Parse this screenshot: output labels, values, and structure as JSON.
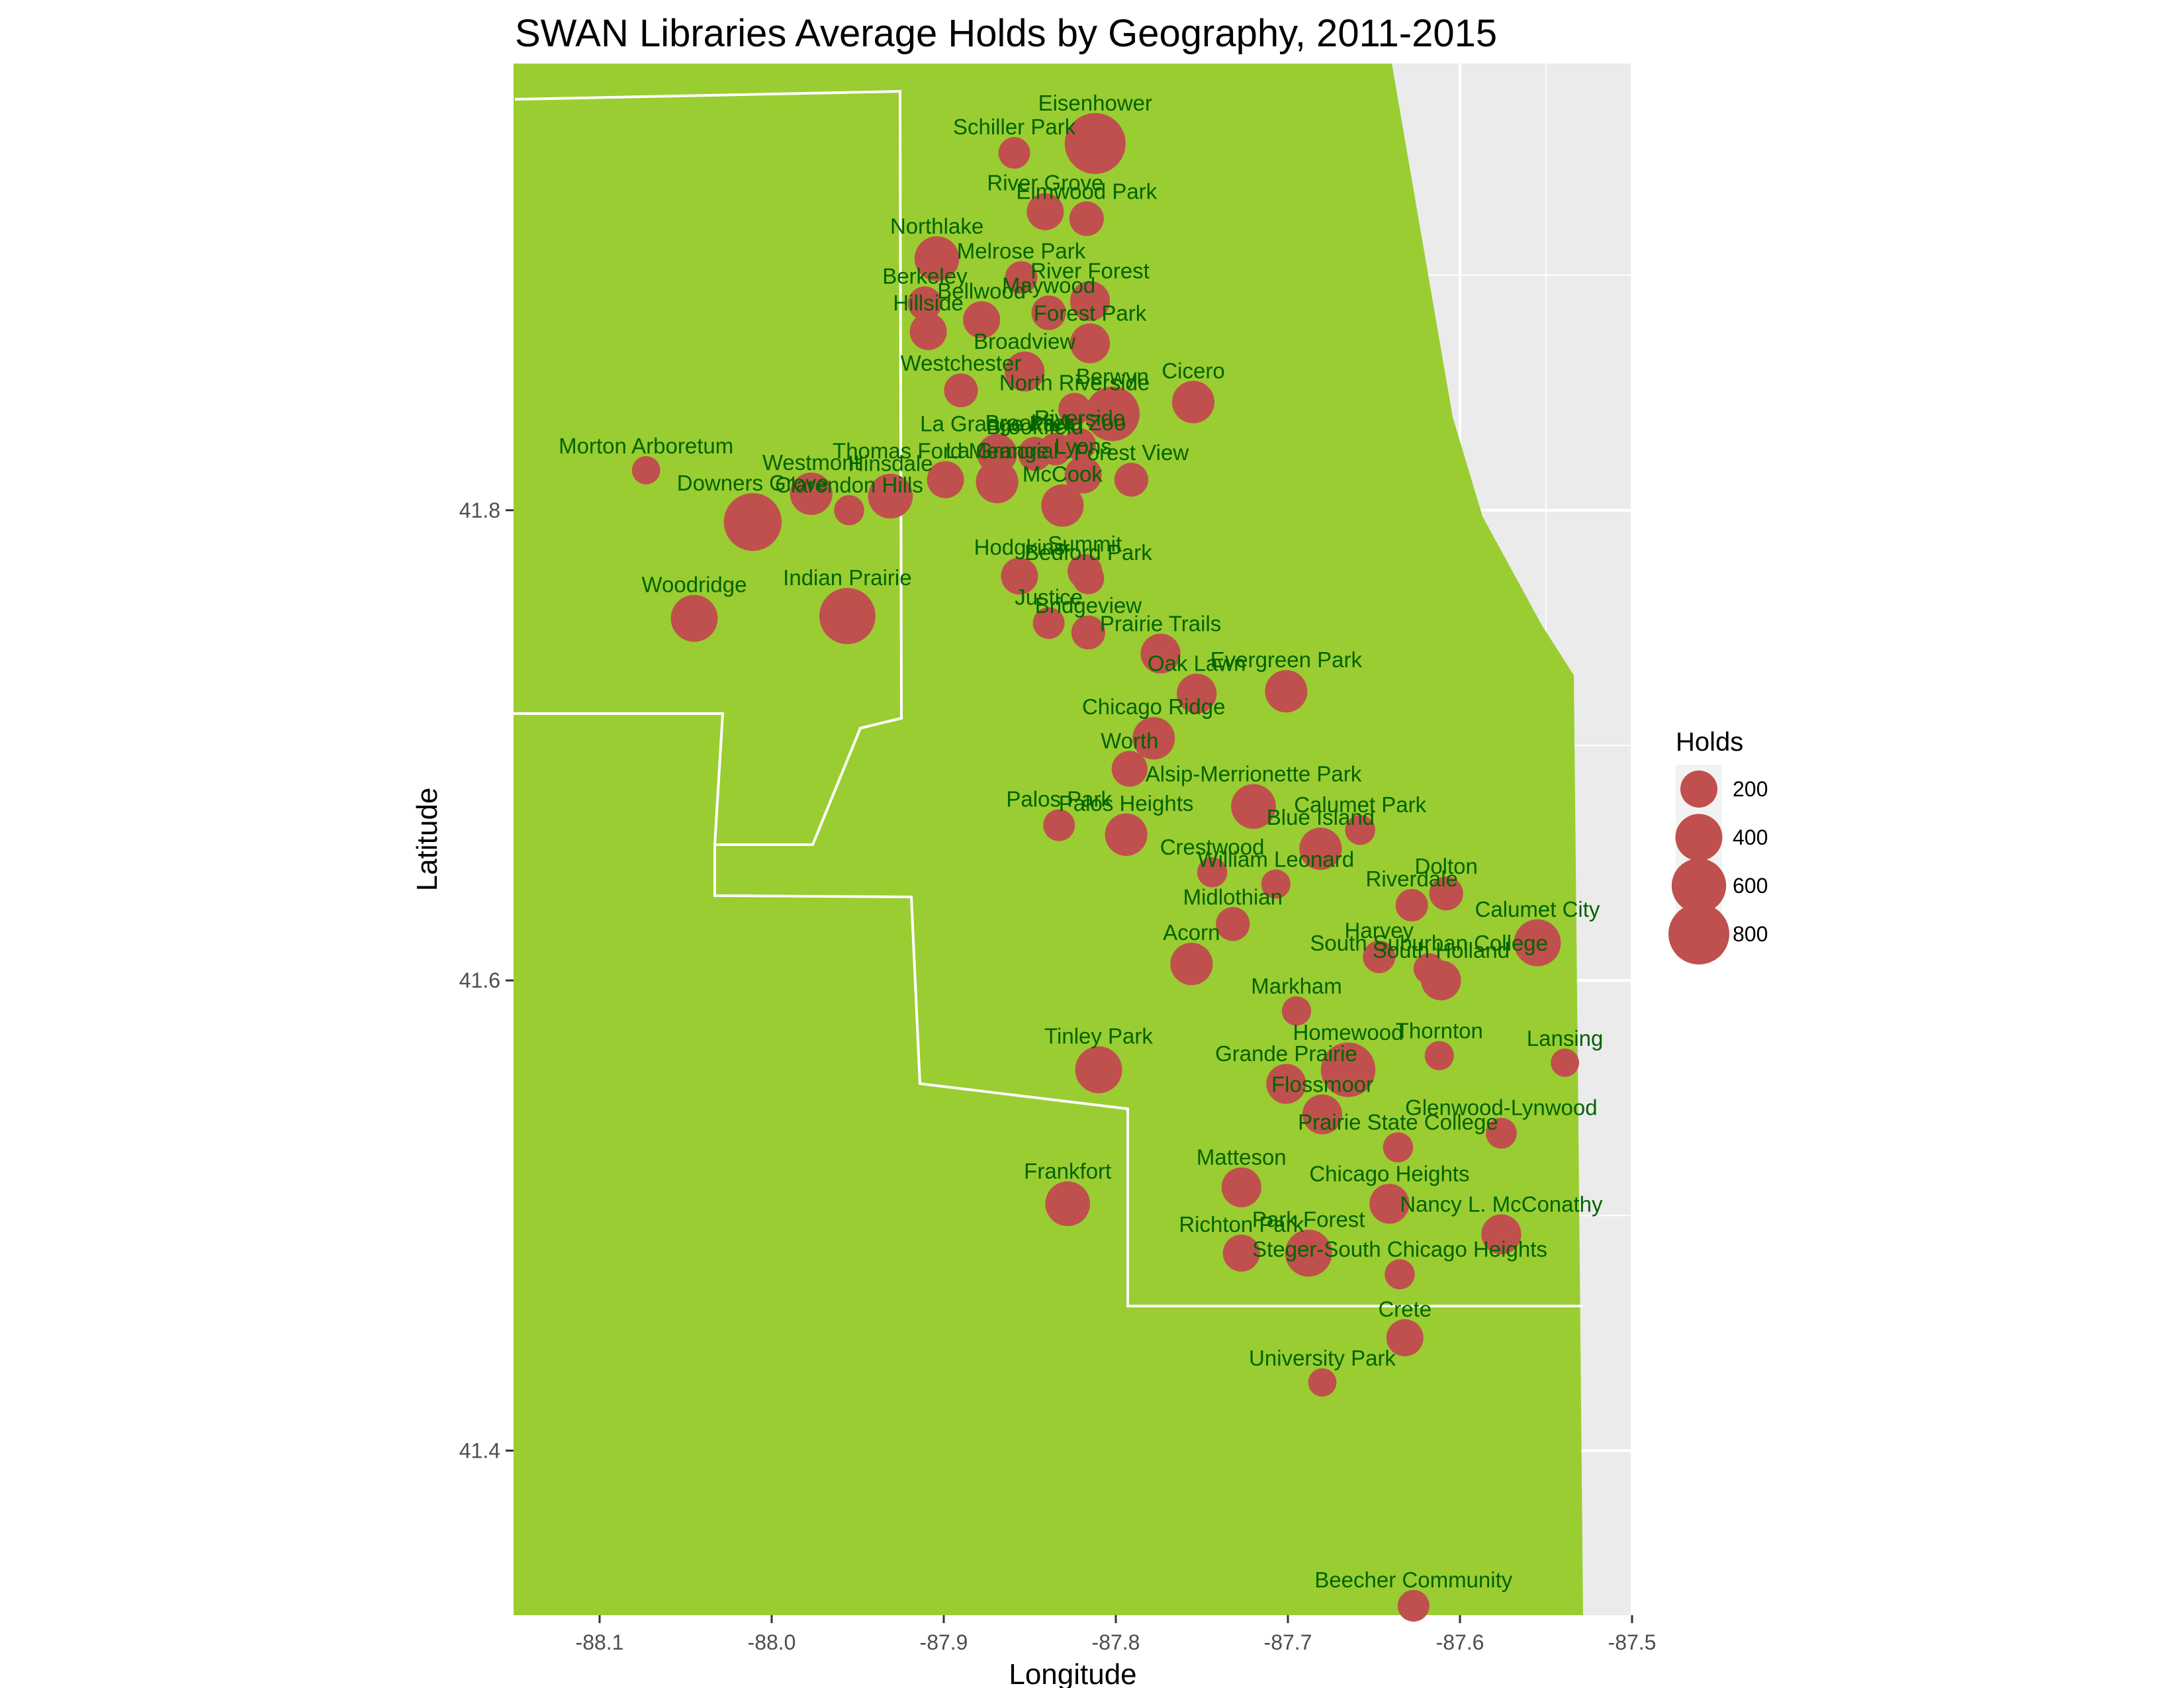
{
  "chart_data": {
    "type": "scatter",
    "title": "SWAN Libraries Average Holds by Geography, 2011-2015",
    "xlabel": "Longitude",
    "ylabel": "Latitude",
    "xlim": [
      -88.15,
      -87.5
    ],
    "ylim": [
      41.33,
      41.99
    ],
    "x_ticks": [
      -88.1,
      -88.0,
      -87.9,
      -87.8,
      -87.7,
      -87.6,
      -87.5
    ],
    "x_tick_labels": [
      "-88.1",
      "-88.0",
      "-87.9",
      "-87.8",
      "-87.7",
      "-87.6",
      "-87.5"
    ],
    "y_ticks": [
      41.4,
      41.6,
      41.8
    ],
    "y_tick_labels": [
      "41.4",
      "41.6",
      "41.8"
    ],
    "grid": true,
    "panel_color": "#ebebeb",
    "land_color": "#9acd32",
    "boundary_color": "#ffffff",
    "point_color": "#c0504d",
    "label_color": "#006400",
    "legend": {
      "title": "Holds",
      "position": "right",
      "values": [
        200,
        400,
        600,
        800
      ],
      "labels": [
        "200",
        "400",
        "600",
        "800"
      ]
    },
    "points": [
      {
        "name": "Eisenhower",
        "x": -87.812,
        "y": 41.956,
        "holds": 800
      },
      {
        "name": "Schiller Park",
        "x": -87.859,
        "y": 41.952,
        "holds": 120
      },
      {
        "name": "River Grove",
        "x": -87.841,
        "y": 41.927,
        "holds": 200
      },
      {
        "name": "Elmwood Park",
        "x": -87.817,
        "y": 41.924,
        "holds": 160
      },
      {
        "name": "Northlake",
        "x": -87.904,
        "y": 41.907,
        "holds": 350
      },
      {
        "name": "Melrose Park",
        "x": -87.855,
        "y": 41.899,
        "holds": 130
      },
      {
        "name": "River Forest",
        "x": -87.815,
        "y": 41.889,
        "holds": 250
      },
      {
        "name": "Maywood",
        "x": -87.839,
        "y": 41.884,
        "holds": 160
      },
      {
        "name": "Berkeley",
        "x": -87.911,
        "y": 41.888,
        "holds": 150
      },
      {
        "name": "Bellwood",
        "x": -87.878,
        "y": 41.881,
        "holds": 200
      },
      {
        "name": "Hillside",
        "x": -87.909,
        "y": 41.876,
        "holds": 200
      },
      {
        "name": "Forest Park",
        "x": -87.815,
        "y": 41.871,
        "holds": 250
      },
      {
        "name": "Broadview",
        "x": -87.853,
        "y": 41.859,
        "holds": 250
      },
      {
        "name": "Westchester",
        "x": -87.89,
        "y": 41.851,
        "holds": 150
      },
      {
        "name": "Cicero",
        "x": -87.755,
        "y": 41.846,
        "holds": 300
      },
      {
        "name": "North Riverside",
        "x": -87.824,
        "y": 41.843,
        "holds": 130
      },
      {
        "name": "Berwyn",
        "x": -87.802,
        "y": 41.841,
        "holds": 600
      },
      {
        "name": "Brookfield Zoo",
        "x": -87.835,
        "y": 41.826,
        "holds": 130
      },
      {
        "name": "Riverside",
        "x": -87.821,
        "y": 41.828,
        "holds": 130
      },
      {
        "name": "La Grange Park",
        "x": -87.869,
        "y": 41.824,
        "holds": 250
      },
      {
        "name": "Brookfield",
        "x": -87.847,
        "y": 41.824,
        "holds": 150
      },
      {
        "name": "Thomas Ford Memorial",
        "x": -87.899,
        "y": 41.813,
        "holds": 200
      },
      {
        "name": "La Grange",
        "x": -87.869,
        "y": 41.812,
        "holds": 300
      },
      {
        "name": "Lyons",
        "x": -87.819,
        "y": 41.815,
        "holds": 200
      },
      {
        "name": "Forest View",
        "x": -87.791,
        "y": 41.813,
        "holds": 150
      },
      {
        "name": "Hinsdale",
        "x": -87.931,
        "y": 41.806,
        "holds": 350
      },
      {
        "name": "Westmont",
        "x": -87.977,
        "y": 41.807,
        "holds": 300
      },
      {
        "name": "Clarendon Hills",
        "x": -87.955,
        "y": 41.8,
        "holds": 100
      },
      {
        "name": "Downers Grove",
        "x": -88.011,
        "y": 41.795,
        "holds": 700
      },
      {
        "name": "Morton Arboretum",
        "x": -88.073,
        "y": 41.817,
        "holds": 80
      },
      {
        "name": "McCook",
        "x": -87.831,
        "y": 41.802,
        "holds": 300
      },
      {
        "name": "Hodgkins",
        "x": -87.856,
        "y": 41.772,
        "holds": 200
      },
      {
        "name": "Summit",
        "x": -87.818,
        "y": 41.774,
        "holds": 160
      },
      {
        "name": "Bedford Park",
        "x": -87.816,
        "y": 41.771,
        "holds": 120
      },
      {
        "name": "Woodridge",
        "x": -88.045,
        "y": 41.754,
        "holds": 400
      },
      {
        "name": "Indian Prairie",
        "x": -87.956,
        "y": 41.755,
        "holds": 650
      },
      {
        "name": "Justice",
        "x": -87.839,
        "y": 41.752,
        "holds": 120
      },
      {
        "name": "Bridgeview",
        "x": -87.816,
        "y": 41.748,
        "holds": 150
      },
      {
        "name": "Prairie Trails",
        "x": -87.774,
        "y": 41.739,
        "holds": 250
      },
      {
        "name": "Oak Lawn",
        "x": -87.753,
        "y": 41.722,
        "holds": 250
      },
      {
        "name": "Evergreen Park",
        "x": -87.701,
        "y": 41.723,
        "holds": 300
      },
      {
        "name": "Chicago Ridge",
        "x": -87.778,
        "y": 41.703,
        "holds": 300
      },
      {
        "name": "Worth",
        "x": -87.792,
        "y": 41.69,
        "holds": 180
      },
      {
        "name": "Alsip-Merrionette Park",
        "x": -87.72,
        "y": 41.674,
        "holds": 350
      },
      {
        "name": "Palos Park",
        "x": -87.833,
        "y": 41.666,
        "holds": 120
      },
      {
        "name": "Palos Heights",
        "x": -87.794,
        "y": 41.662,
        "holds": 300
      },
      {
        "name": "Calumet Park",
        "x": -87.658,
        "y": 41.664,
        "holds": 100
      },
      {
        "name": "Blue Island",
        "x": -87.681,
        "y": 41.656,
        "holds": 300
      },
      {
        "name": "Crestwood",
        "x": -87.744,
        "y": 41.646,
        "holds": 100
      },
      {
        "name": "William Leonard",
        "x": -87.707,
        "y": 41.641,
        "holds": 90
      },
      {
        "name": "Dolton",
        "x": -87.608,
        "y": 41.637,
        "holds": 150
      },
      {
        "name": "Riverdale",
        "x": -87.628,
        "y": 41.632,
        "holds": 130
      },
      {
        "name": "Midlothian",
        "x": -87.732,
        "y": 41.624,
        "holds": 150
      },
      {
        "name": "Calumet City",
        "x": -87.555,
        "y": 41.616,
        "holds": 400
      },
      {
        "name": "Harvey",
        "x": -87.647,
        "y": 41.61,
        "holds": 130
      },
      {
        "name": "South Suburban College",
        "x": -87.618,
        "y": 41.605,
        "holds": 110
      },
      {
        "name": "Acorn",
        "x": -87.756,
        "y": 41.607,
        "holds": 300
      },
      {
        "name": "South Holland",
        "x": -87.611,
        "y": 41.6,
        "holds": 250
      },
      {
        "name": "Markham",
        "x": -87.695,
        "y": 41.587,
        "holds": 90
      },
      {
        "name": "Thornton",
        "x": -87.612,
        "y": 41.568,
        "holds": 90
      },
      {
        "name": "Lansing",
        "x": -87.539,
        "y": 41.565,
        "holds": 80
      },
      {
        "name": "Homewood",
        "x": -87.665,
        "y": 41.562,
        "holds": 600
      },
      {
        "name": "Tinley Park",
        "x": -87.81,
        "y": 41.562,
        "holds": 400
      },
      {
        "name": "Grande Prairie",
        "x": -87.701,
        "y": 41.556,
        "holds": 250
      },
      {
        "name": "Flossmoor",
        "x": -87.68,
        "y": 41.543,
        "holds": 250
      },
      {
        "name": "Glenwood-Lynwood",
        "x": -87.576,
        "y": 41.535,
        "holds": 110
      },
      {
        "name": "Prairie State College",
        "x": -87.636,
        "y": 41.529,
        "holds": 100
      },
      {
        "name": "Matteson",
        "x": -87.727,
        "y": 41.512,
        "holds": 250
      },
      {
        "name": "Frankfort",
        "x": -87.828,
        "y": 41.505,
        "holds": 350
      },
      {
        "name": "Chicago Heights",
        "x": -87.641,
        "y": 41.505,
        "holds": 250
      },
      {
        "name": "Nancy L. McConathy",
        "x": -87.576,
        "y": 41.492,
        "holds": 250
      },
      {
        "name": "Richton Park",
        "x": -87.727,
        "y": 41.484,
        "holds": 200
      },
      {
        "name": "Park Forest",
        "x": -87.688,
        "y": 41.484,
        "holds": 400
      },
      {
        "name": "Steger-South Chicago Heights",
        "x": -87.635,
        "y": 41.475,
        "holds": 100
      },
      {
        "name": "Crete",
        "x": -87.632,
        "y": 41.448,
        "holds": 200
      },
      {
        "name": "University Park",
        "x": -87.68,
        "y": 41.429,
        "holds": 80
      },
      {
        "name": "Beecher Community",
        "x": -87.627,
        "y": 41.334,
        "holds": 120
      }
    ]
  }
}
